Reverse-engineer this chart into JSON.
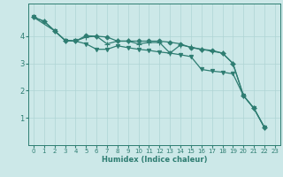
{
  "xlabel": "Humidex (Indice chaleur)",
  "background_color": "#cce8e8",
  "grid_color": "#afd4d4",
  "line_color": "#2e7d72",
  "xlim": [
    -0.5,
    23.5
  ],
  "ylim": [
    0,
    5.2
  ],
  "yticks": [
    1,
    2,
    3,
    4
  ],
  "xticks": [
    0,
    1,
    2,
    3,
    4,
    5,
    6,
    7,
    8,
    9,
    10,
    11,
    12,
    13,
    14,
    15,
    16,
    17,
    18,
    19,
    20,
    21,
    22,
    23
  ],
  "series": [
    {
      "x": [
        0,
        1,
        2,
        3,
        4,
        5,
        6,
        7,
        8,
        9,
        10,
        11,
        12,
        13,
        14,
        15,
        16,
        17,
        18,
        19,
        20,
        21,
        22
      ],
      "y": [
        4.7,
        4.55,
        4.2,
        3.85,
        3.82,
        4.02,
        4.0,
        3.97,
        3.82,
        3.82,
        3.82,
        3.82,
        3.82,
        3.78,
        3.72,
        3.58,
        3.52,
        3.48,
        3.38,
        3.0,
        1.82,
        1.35,
        0.65
      ],
      "marker": "D",
      "markersize": 2.5,
      "linewidth": 0.9
    },
    {
      "x": [
        0,
        1,
        2,
        3,
        4,
        5,
        6,
        7,
        8,
        9,
        10,
        11,
        12,
        13,
        14,
        15,
        16,
        17,
        18,
        19,
        20,
        21,
        22
      ],
      "y": [
        4.7,
        4.55,
        4.2,
        3.85,
        3.82,
        3.97,
        4.0,
        3.72,
        3.82,
        3.82,
        3.72,
        3.77,
        3.77,
        3.38,
        3.68,
        3.6,
        3.52,
        3.45,
        3.38,
        3.0,
        1.82,
        1.35,
        0.65
      ],
      "marker": "+",
      "markersize": 5,
      "linewidth": 0.9
    },
    {
      "x": [
        0,
        2,
        3,
        4,
        5,
        6,
        7,
        8,
        9,
        10,
        11,
        12,
        13,
        14,
        15,
        16,
        17,
        18,
        19,
        20,
        21,
        22
      ],
      "y": [
        4.7,
        4.2,
        3.85,
        3.82,
        3.72,
        3.52,
        3.52,
        3.65,
        3.58,
        3.52,
        3.48,
        3.42,
        3.38,
        3.32,
        3.25,
        2.78,
        2.72,
        2.68,
        2.62,
        1.82,
        1.35,
        0.65
      ],
      "marker": "v",
      "markersize": 3,
      "linewidth": 0.9
    }
  ]
}
